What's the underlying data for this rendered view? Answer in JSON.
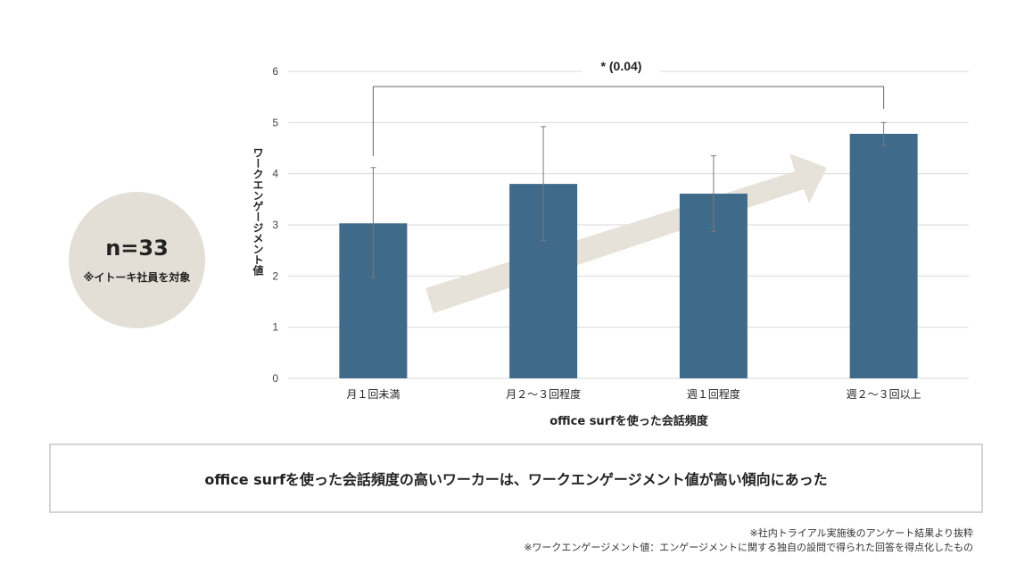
{
  "badge": {
    "n_label": "n=33",
    "note": "※イトーキ社員を対象"
  },
  "ylabel": "ワークエンゲージメント値",
  "xlabel": "office surfを使った会話頻度",
  "significance": "* (0.04)",
  "conclusion": "office surfを使った会話頻度の高いワーカーは、ワークエンゲージメント値が高い傾向にあった",
  "footnotes": [
    "※社内トライアル実施後のアンケート結果より抜粋",
    "※ワークエンゲージメント値：エンゲージメントに関する独自の設問で得られた回答を得点化したもの"
  ],
  "colors": {
    "bar": "#3f6a8a",
    "arrow": "#e6e2da",
    "grid": "#d9d9d9",
    "error": "#7a7a7a"
  },
  "chart_data": {
    "type": "bar",
    "categories": [
      "月１回未満",
      "月２～３回程度",
      "週１回程度",
      "週２～３回以上"
    ],
    "values": [
      3.03,
      3.8,
      3.61,
      4.78
    ],
    "error_low": [
      1.97,
      2.69,
      2.87,
      4.55
    ],
    "error_high": [
      4.12,
      4.92,
      4.35,
      5.0
    ],
    "ylim": [
      0,
      6
    ],
    "yticks": [
      "0",
      "1",
      "2",
      "3",
      "4",
      "5",
      "6"
    ],
    "grid": true,
    "annotations": [
      {
        "type": "significance-bracket",
        "from": "月１回未満",
        "to": "週２～３回以上",
        "label": "* (0.04)"
      },
      {
        "type": "trend-arrow",
        "direction": "up"
      }
    ]
  }
}
